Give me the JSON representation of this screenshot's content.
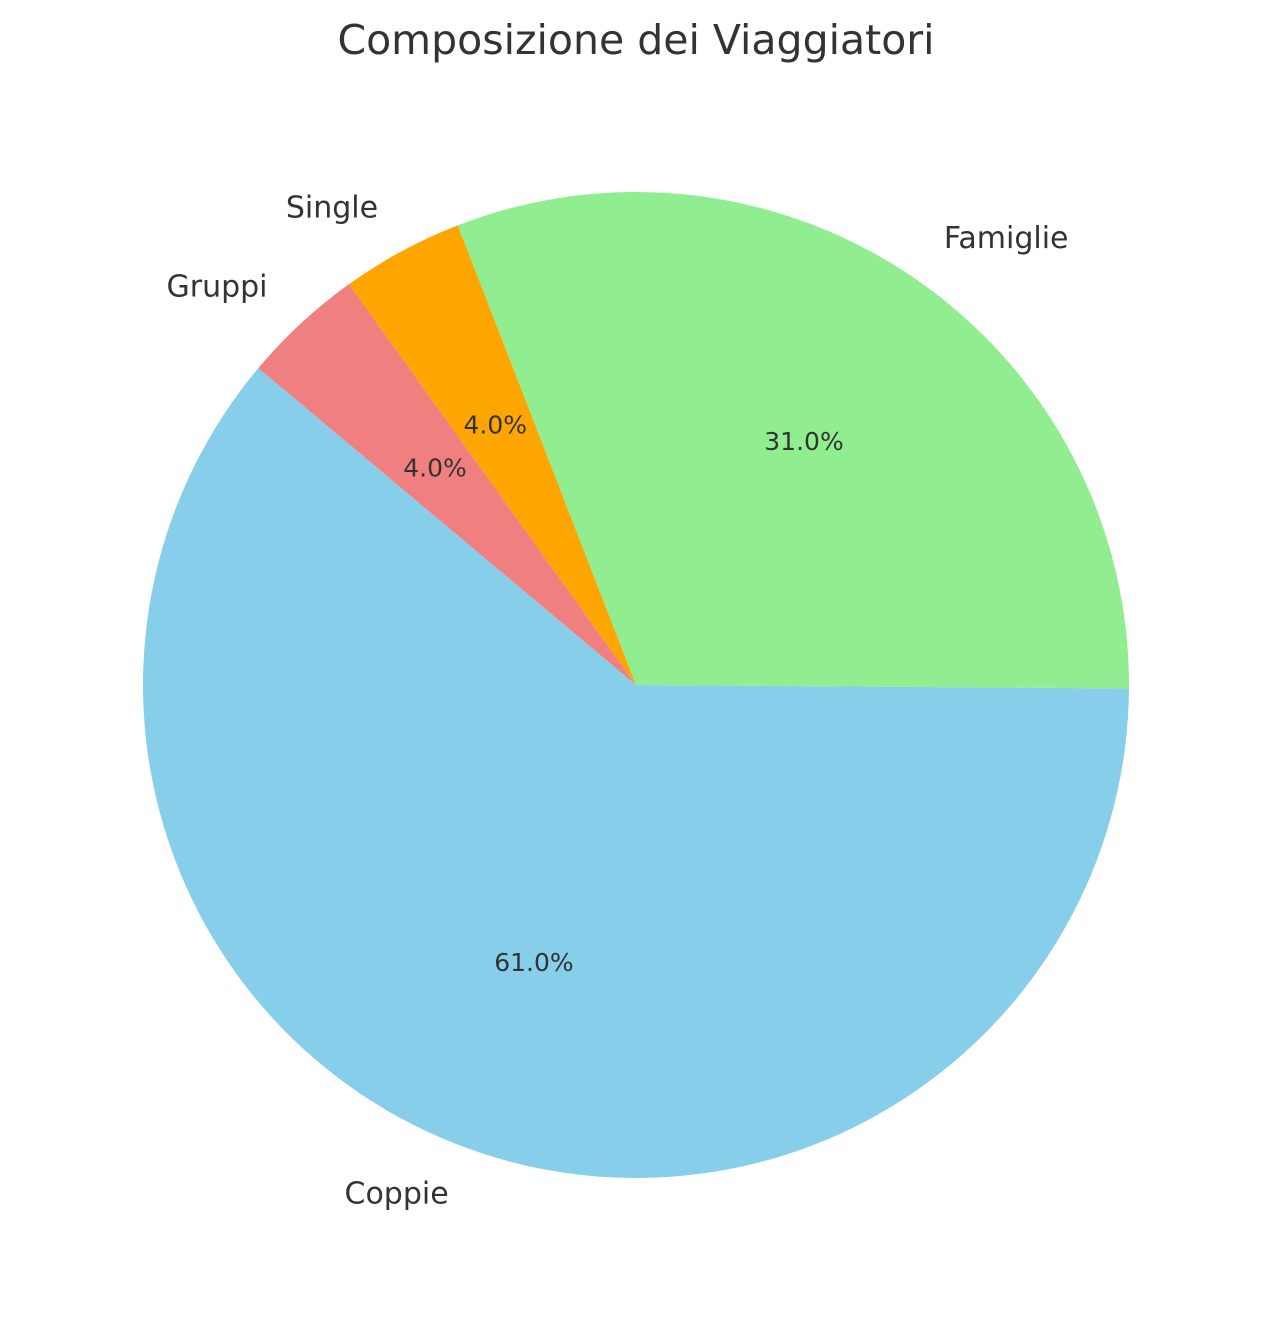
{
  "chart_data": {
    "type": "pie",
    "title": "Composizione dei Viaggiatori",
    "categories": [
      "Coppie",
      "Famiglie",
      "Single",
      "Gruppi"
    ],
    "values": [
      61.0,
      31.0,
      4.0,
      4.0
    ],
    "value_labels": [
      "61.0%",
      "31.0%",
      "4.0%",
      "4.0%"
    ],
    "colors": [
      "#87CEEB",
      "#90EE90",
      "#FFA500",
      "#F08080"
    ],
    "start_angle_deg": 140,
    "direction": "counterclockwise",
    "legend": "none"
  }
}
